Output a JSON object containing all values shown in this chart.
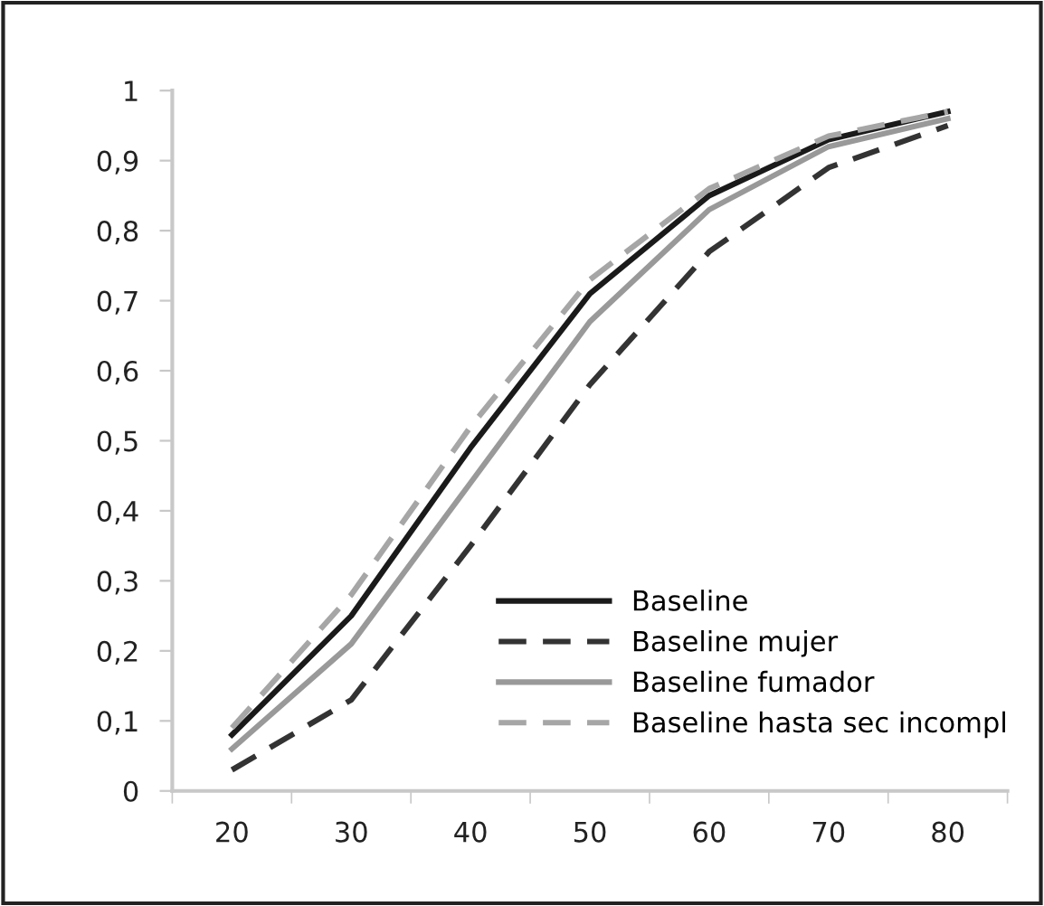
{
  "chart_data": {
    "type": "line",
    "categories": [
      "20",
      "30",
      "40",
      "50",
      "60",
      "70",
      "80"
    ],
    "series": [
      {
        "name": "Baseline",
        "color": "#1a1a1a",
        "line_style": "solid",
        "values": [
          0.08,
          0.25,
          0.49,
          0.71,
          0.85,
          0.93,
          0.97
        ]
      },
      {
        "name": "Baseline mujer",
        "color": "#333333",
        "line_style": "dashed",
        "values": [
          0.03,
          0.13,
          0.35,
          0.58,
          0.77,
          0.89,
          0.95
        ]
      },
      {
        "name": "Baseline fumador",
        "color": "#999999",
        "line_style": "solid",
        "values": [
          0.06,
          0.21,
          0.44,
          0.67,
          0.83,
          0.92,
          0.96
        ]
      },
      {
        "name": "Baseline hasta sec incompl",
        "color": "#a6a6a6",
        "line_style": "dashed",
        "values": [
          0.09,
          0.28,
          0.52,
          0.73,
          0.86,
          0.935,
          0.97
        ]
      }
    ],
    "ylim": [
      0,
      1
    ],
    "yticks": [
      0,
      {
        "value": 0.1,
        "label": "0,1"
      },
      {
        "value": 0.2,
        "label": "0,2"
      },
      {
        "value": 0.3,
        "label": "0,3"
      },
      {
        "value": 0.4,
        "label": "0,4"
      },
      {
        "value": 0.5,
        "label": "0,5"
      },
      {
        "value": 0.6,
        "label": "0,6"
      },
      {
        "value": 0.7,
        "label": "0,7"
      },
      {
        "value": 0.8,
        "label": "0,8"
      },
      {
        "value": 0.9,
        "label": "0,9"
      },
      1
    ],
    "grid": false,
    "legend": "bottom right",
    "marker": "none"
  }
}
